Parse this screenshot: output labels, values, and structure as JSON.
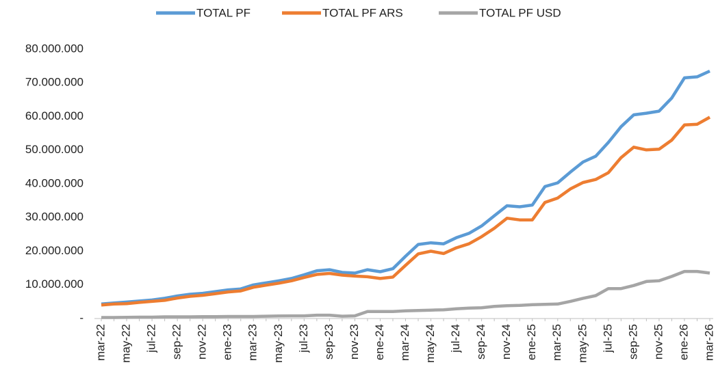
{
  "chart_data": {
    "type": "line",
    "categories": [
      "mar-22",
      null,
      "may-22",
      null,
      "jul-22",
      null,
      "sep-22",
      null,
      "nov-22",
      null,
      "ene-23",
      null,
      "mar-23",
      null,
      "may-23",
      null,
      "jul-23",
      null,
      "sep-23",
      null,
      "nov-23",
      null,
      "ene-24",
      null,
      "mar-24",
      null,
      "may-24",
      null,
      "jul-24",
      null,
      "sep-24",
      null,
      "nov-24",
      null,
      "ene-25",
      null,
      "mar-25",
      null,
      "may-25",
      null,
      "jul-25",
      null,
      "sep-25",
      null,
      "nov-25",
      null,
      "ene-26",
      null,
      "mar-26"
    ],
    "series": [
      {
        "name": "TOTAL PF",
        "color": "#5b9bd5",
        "values": [
          4300000,
          4600000,
          4900000,
          5200000,
          5500000,
          6000000,
          6700000,
          7200000,
          7500000,
          8000000,
          8500000,
          8800000,
          10000000,
          10600000,
          11200000,
          11900000,
          13000000,
          14200000,
          14500000,
          13700000,
          13500000,
          14500000,
          13900000,
          14800000,
          18500000,
          22000000,
          22500000,
          22200000,
          24000000,
          25300000,
          27500000,
          30500000,
          33500000,
          33200000,
          33700000,
          39200000,
          40300000,
          43500000,
          46500000,
          48200000,
          52300000,
          57000000,
          60500000,
          61000000,
          61600000,
          65500000,
          71500000,
          71800000,
          73500000
        ]
      },
      {
        "name": "TOTAL PF ARS",
        "color": "#ed7d31",
        "values": [
          4000000,
          4300000,
          4400000,
          4800000,
          5100000,
          5400000,
          6100000,
          6600000,
          6900000,
          7400000,
          7900000,
          8200000,
          9300000,
          9900000,
          10500000,
          11200000,
          12200000,
          13100000,
          13400000,
          12900000,
          12600000,
          12400000,
          11900000,
          12300000,
          15800000,
          19200000,
          20000000,
          19300000,
          21000000,
          22200000,
          24300000,
          26800000,
          29800000,
          29300000,
          29300000,
          34500000,
          35800000,
          38500000,
          40400000,
          41300000,
          43300000,
          47800000,
          50900000,
          50100000,
          50300000,
          53000000,
          57500000,
          57700000,
          59800000
        ]
      },
      {
        "name": "TOTAL PF USD",
        "color": "#a5a5a5",
        "values": [
          300000,
          300000,
          350000,
          400000,
          400000,
          500000,
          500000,
          500000,
          550000,
          550000,
          600000,
          600000,
          600000,
          700000,
          750000,
          800000,
          800000,
          1000000,
          1000000,
          700000,
          800000,
          2100000,
          2100000,
          2100000,
          2300000,
          2400000,
          2500000,
          2600000,
          2900000,
          3100000,
          3200000,
          3600000,
          3800000,
          3900000,
          4100000,
          4200000,
          4300000,
          5100000,
          6000000,
          6800000,
          8900000,
          8900000,
          9800000,
          11000000,
          11200000,
          12500000,
          14000000,
          14000000,
          13500000
        ]
      }
    ],
    "ylim": [
      0,
      80000000
    ],
    "yticks": [
      {
        "value": 0,
        "label": "-"
      },
      {
        "value": 10000000,
        "label": "10.000.000"
      },
      {
        "value": 20000000,
        "label": "20.000.000"
      },
      {
        "value": 30000000,
        "label": "30.000.000"
      },
      {
        "value": 40000000,
        "label": "40.000.000"
      },
      {
        "value": 50000000,
        "label": "50.000.000"
      },
      {
        "value": 60000000,
        "label": "60.000.000"
      },
      {
        "value": 70000000,
        "label": "70.000.000"
      },
      {
        "value": 80000000,
        "label": "80.000.000"
      }
    ],
    "legend": "top",
    "grid": false
  }
}
